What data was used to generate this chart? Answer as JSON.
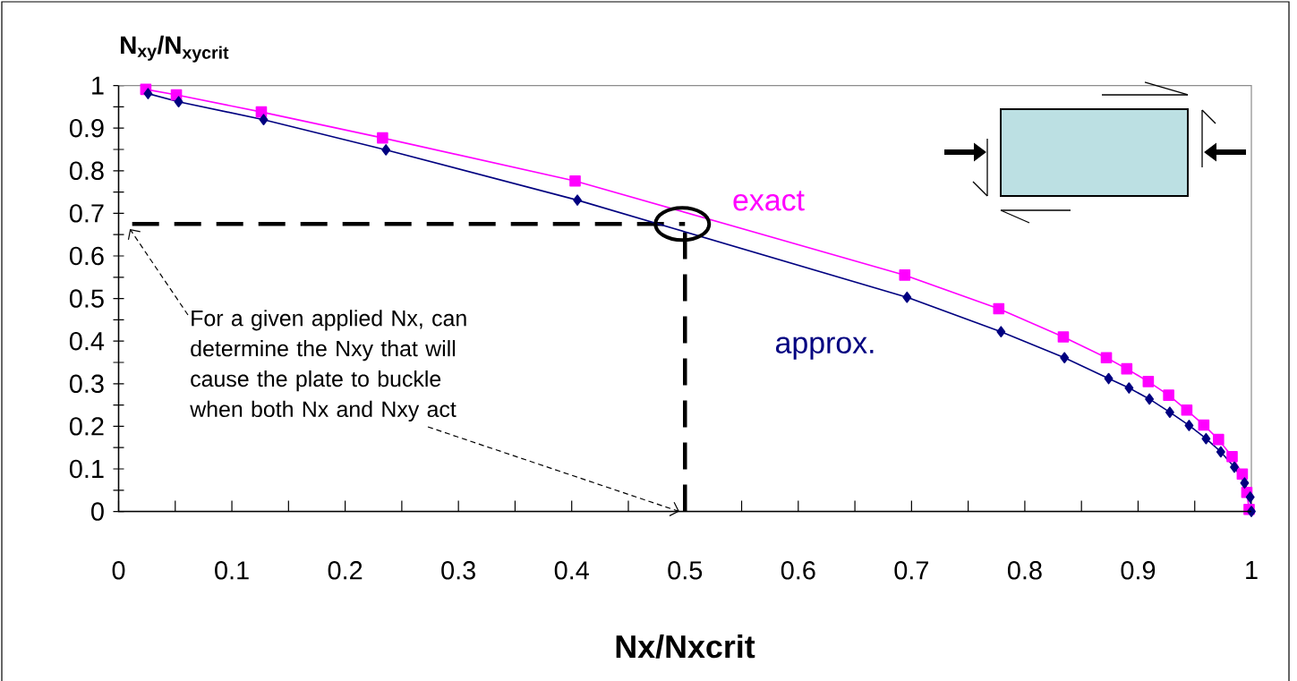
{
  "chart_data": {
    "type": "line",
    "xlabel": "Nx/Nxcrit",
    "ylabel": "N$_{xy}$/N$_{xycrit}$",
    "annotations": [
      "For a given applied Nx, can determine the Nxy that will cause the plate to buckle when both Nx and Nxy act"
    ],
    "series": [
      {
        "name": "exact",
        "color": "#ff00ff",
        "marker": "square",
        "x": [
          0.024,
          0.051,
          0.126,
          0.233,
          0.403,
          0.694,
          0.777,
          0.834,
          0.872,
          0.89,
          0.909,
          0.927,
          0.943,
          0.958,
          0.971,
          0.983,
          0.992,
          0.996,
          0.998
        ],
        "values": [
          0.991,
          0.978,
          0.938,
          0.877,
          0.776,
          0.555,
          0.476,
          0.41,
          0.361,
          0.335,
          0.305,
          0.273,
          0.238,
          0.203,
          0.169,
          0.129,
          0.088,
          0.045,
          0.005
        ]
      },
      {
        "name": "approx.",
        "color": "#000080",
        "marker": "diamond",
        "x": [
          0.026,
          0.053,
          0.128,
          0.236,
          0.405,
          0.696,
          0.779,
          0.835,
          0.874,
          0.892,
          0.91,
          0.928,
          0.945,
          0.96,
          0.973,
          0.985,
          0.994,
          0.999,
          1.0
        ],
        "values": [
          0.981,
          0.962,
          0.92,
          0.849,
          0.731,
          0.503,
          0.422,
          0.361,
          0.312,
          0.29,
          0.264,
          0.233,
          0.202,
          0.171,
          0.14,
          0.104,
          0.067,
          0.034,
          0.0
        ]
      }
    ],
    "xlim": [
      0,
      1
    ],
    "ylim": [
      0,
      1
    ],
    "xticks": [
      0,
      0.1,
      0.2,
      0.3,
      0.4,
      0.5,
      0.6,
      0.7,
      0.8,
      0.9,
      1
    ],
    "yticks": [
      0,
      0.1,
      0.2,
      0.3,
      0.4,
      0.5,
      0.6,
      0.7,
      0.8,
      0.9,
      1
    ],
    "ref_lines": [
      {
        "axis": "x",
        "value": 0.5,
        "color": "#000000",
        "line_style": "dashed"
      },
      {
        "axis": "y",
        "value": 0.675,
        "color": "#000000",
        "line_style": "dashed"
      }
    ]
  }
}
